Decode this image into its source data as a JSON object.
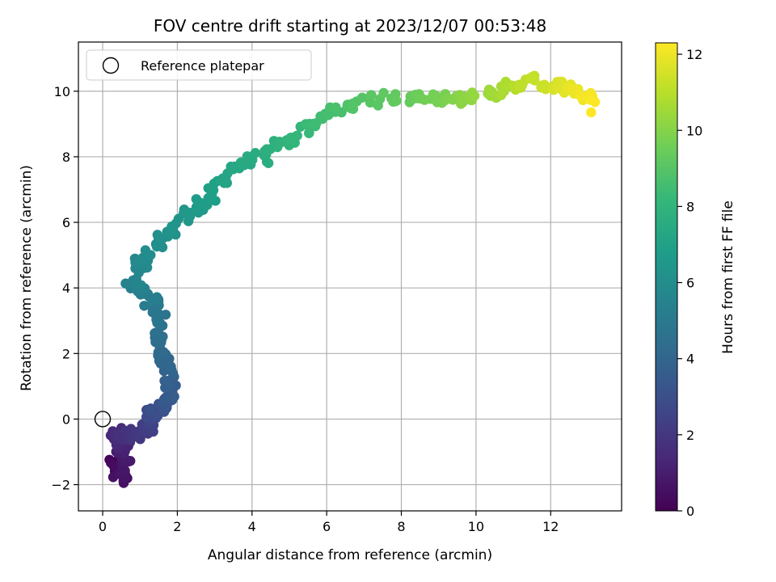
{
  "chart_data": {
    "type": "scatter",
    "title": "FOV centre drift starting at 2023/12/07 00:53:48",
    "xlabel": "Angular distance from reference (arcmin)",
    "ylabel": "Rotation from reference (arcmin)",
    "xlim": [
      -0.65,
      13.9
    ],
    "ylim": [
      -2.8,
      11.5
    ],
    "xticks": [
      0,
      2,
      4,
      6,
      8,
      10,
      12
    ],
    "yticks": [
      -2,
      0,
      2,
      4,
      6,
      8,
      10
    ],
    "grid": true,
    "legend": {
      "placement": "top-left",
      "label": "Reference platepar"
    },
    "reference_point": {
      "x": 0,
      "y": 0
    },
    "colorbar": {
      "label": "Hours from first FF file",
      "range": [
        0,
        12.3
      ],
      "ticks": [
        0,
        2,
        4,
        6,
        8,
        10,
        12
      ],
      "colormap": "viridis",
      "colors": [
        "#440154",
        "#482878",
        "#3e4989",
        "#31688e",
        "#26828e",
        "#1f9e89",
        "#35b779",
        "#6ece58",
        "#b5de2b",
        "#fde725"
      ]
    },
    "anchors": [
      [
        0.1,
        0.3,
        -1.3
      ],
      [
        0.6,
        0.6,
        -1.9
      ],
      [
        1.0,
        0.5,
        -0.9
      ],
      [
        1.5,
        0.4,
        -0.5
      ],
      [
        2.0,
        0.9,
        -0.5
      ],
      [
        2.5,
        1.3,
        0.0
      ],
      [
        3.0,
        1.5,
        0.3
      ],
      [
        3.5,
        1.8,
        0.6
      ],
      [
        3.8,
        1.8,
        1.3
      ],
      [
        4.2,
        1.6,
        2.0
      ],
      [
        4.6,
        1.6,
        2.8
      ],
      [
        5.0,
        1.4,
        3.5
      ],
      [
        5.5,
        0.9,
        4.1
      ],
      [
        5.9,
        1.1,
        4.9
      ],
      [
        6.3,
        1.9,
        5.9
      ],
      [
        6.7,
        2.6,
        6.5
      ],
      [
        7.1,
        3.2,
        7.3
      ],
      [
        7.5,
        4.0,
        7.9
      ],
      [
        8.0,
        5.0,
        8.5
      ],
      [
        8.5,
        5.8,
        9.2
      ],
      [
        9.0,
        7.0,
        9.7
      ],
      [
        9.5,
        8.5,
        9.8
      ],
      [
        10.0,
        9.5,
        9.7
      ],
      [
        10.5,
        10.5,
        9.9
      ],
      [
        11.0,
        11.2,
        10.3
      ],
      [
        11.5,
        12.1,
        10.2
      ],
      [
        12.0,
        12.7,
        10.0
      ],
      [
        12.3,
        13.2,
        9.6
      ]
    ],
    "point_count": 430
  }
}
